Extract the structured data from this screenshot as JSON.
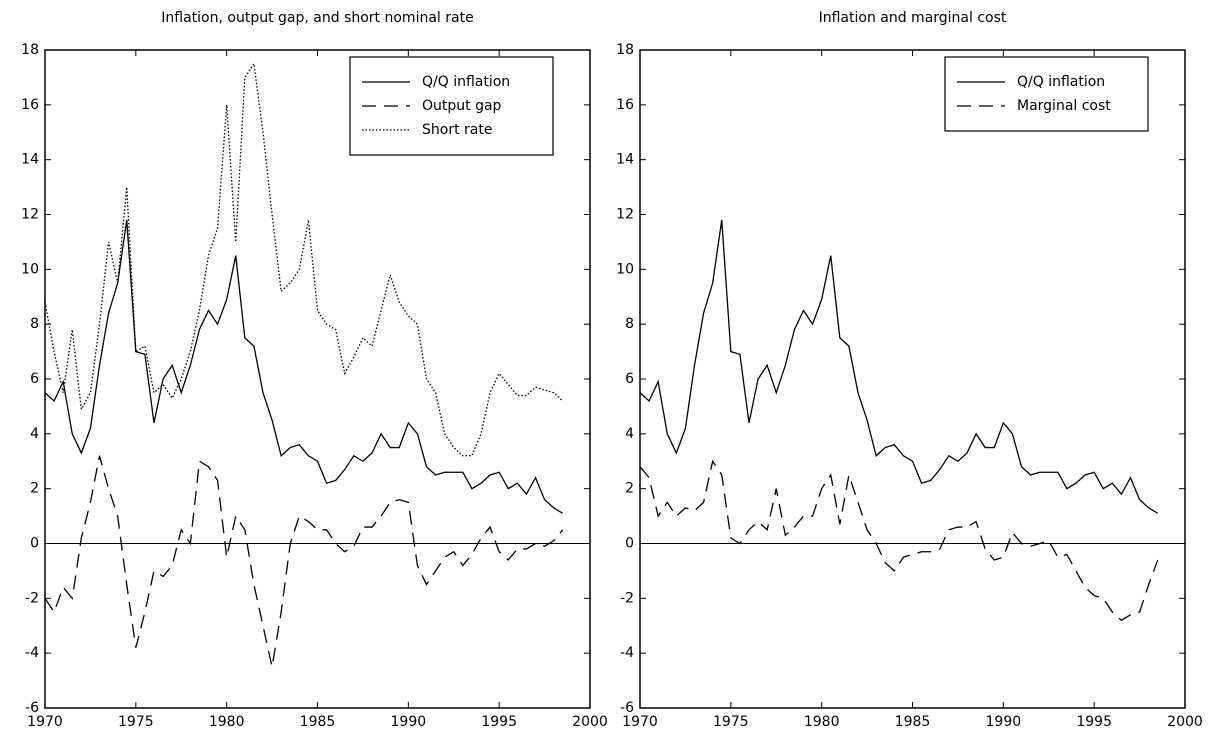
{
  "chart_data": [
    {
      "type": "line",
      "title": "Inflation, output gap, and short nominal rate",
      "x": [
        1970,
        1970.5,
        1971,
        1971.5,
        1972,
        1972.5,
        1973,
        1973.5,
        1974,
        1974.5,
        1975,
        1975.5,
        1976,
        1976.5,
        1977,
        1977.5,
        1978,
        1978.5,
        1979,
        1979.5,
        1980,
        1980.5,
        1981,
        1981.5,
        1982,
        1982.5,
        1983,
        1983.5,
        1984,
        1984.5,
        1985,
        1985.5,
        1986,
        1986.5,
        1987,
        1987.5,
        1988,
        1988.5,
        1989,
        1989.5,
        1990,
        1990.5,
        1991,
        1991.5,
        1992,
        1992.5,
        1993,
        1993.5,
        1994,
        1994.5,
        1995,
        1995.5,
        1996,
        1996.5,
        1997,
        1997.5,
        1998,
        1998.5
      ],
      "series": [
        {
          "name": "Q/Q inflation",
          "color": "#000000",
          "style": "solid",
          "values": [
            5.5,
            5.2,
            5.9,
            4.0,
            3.3,
            4.2,
            6.5,
            8.4,
            9.5,
            11.8,
            7.0,
            6.9,
            4.4,
            6.0,
            6.5,
            5.5,
            6.5,
            7.8,
            8.5,
            8.0,
            8.9,
            10.5,
            7.5,
            7.2,
            5.5,
            4.5,
            3.2,
            3.5,
            3.6,
            3.2,
            3.0,
            2.2,
            2.3,
            2.7,
            3.2,
            3.0,
            3.3,
            4.0,
            3.5,
            3.5,
            4.4,
            4.0,
            2.8,
            2.5,
            2.6,
            2.6,
            2.6,
            2.0,
            2.2,
            2.5,
            2.6,
            2.0,
            2.2,
            1.8,
            2.4,
            1.6,
            1.3,
            1.1
          ]
        },
        {
          "name": "Output gap",
          "color": "#000000",
          "style": "dashed",
          "values": [
            -2.0,
            -2.5,
            -1.6,
            -2.0,
            0.2,
            1.5,
            3.2,
            2.0,
            1.0,
            -1.5,
            -3.8,
            -2.5,
            -1.0,
            -1.2,
            -0.8,
            0.5,
            0.0,
            3.0,
            2.8,
            2.3,
            -0.5,
            1.0,
            0.5,
            -1.5,
            -3.0,
            -4.5,
            -2.5,
            0.0,
            1.0,
            0.8,
            0.5,
            0.5,
            0.0,
            -0.3,
            -0.1,
            0.6,
            0.6,
            1.0,
            1.5,
            1.6,
            1.5,
            -0.8,
            -1.5,
            -1.0,
            -0.5,
            -0.3,
            -0.8,
            -0.4,
            0.2,
            0.6,
            -0.3,
            -0.6,
            -0.2,
            -0.2,
            0.0,
            -0.1,
            0.1,
            0.5
          ]
        },
        {
          "name": "Short rate",
          "color": "#000000",
          "style": "dotted",
          "values": [
            8.8,
            7.0,
            5.5,
            7.8,
            4.9,
            5.5,
            8.0,
            11.0,
            9.5,
            13.0,
            7.0,
            7.2,
            5.5,
            5.8,
            5.3,
            6.0,
            7.0,
            8.5,
            10.5,
            11.5,
            16.0,
            11.0,
            17.0,
            17.5,
            15.0,
            12.0,
            9.2,
            9.5,
            10.0,
            11.8,
            8.5,
            8.0,
            7.8,
            6.2,
            6.8,
            7.5,
            7.2,
            8.5,
            9.8,
            8.8,
            8.3,
            8.0,
            6.0,
            5.5,
            4.0,
            3.5,
            3.2,
            3.2,
            4.0,
            5.5,
            6.2,
            5.8,
            5.4,
            5.4,
            5.7,
            5.6,
            5.5,
            5.2
          ]
        }
      ],
      "xlim": [
        1970,
        2000
      ],
      "xticks": [
        1970,
        1975,
        1980,
        1985,
        1990,
        1995,
        2000
      ],
      "ylim": [
        -6,
        18
      ],
      "yticks": [
        -6,
        -4,
        -2,
        0,
        2,
        4,
        6,
        8,
        10,
        12,
        14,
        16,
        18
      ],
      "legend": "upper right",
      "grid": false
    },
    {
      "type": "line",
      "title": "Inflation and marginal cost",
      "x": [
        1970,
        1970.5,
        1971,
        1971.5,
        1972,
        1972.5,
        1973,
        1973.5,
        1974,
        1974.5,
        1975,
        1975.5,
        1976,
        1976.5,
        1977,
        1977.5,
        1978,
        1978.5,
        1979,
        1979.5,
        1980,
        1980.5,
        1981,
        1981.5,
        1982,
        1982.5,
        1983,
        1983.5,
        1984,
        1984.5,
        1985,
        1985.5,
        1986,
        1986.5,
        1987,
        1987.5,
        1988,
        1988.5,
        1989,
        1989.5,
        1990,
        1990.5,
        1991,
        1991.5,
        1992,
        1992.5,
        1993,
        1993.5,
        1994,
        1994.5,
        1995,
        1995.5,
        1996,
        1996.5,
        1997,
        1997.5,
        1998,
        1998.5
      ],
      "series": [
        {
          "name": "Q/Q inflation",
          "color": "#000000",
          "style": "solid",
          "values": [
            5.5,
            5.2,
            5.9,
            4.0,
            3.3,
            4.2,
            6.5,
            8.4,
            9.5,
            11.8,
            7.0,
            6.9,
            4.4,
            6.0,
            6.5,
            5.5,
            6.5,
            7.8,
            8.5,
            8.0,
            8.9,
            10.5,
            7.5,
            7.2,
            5.5,
            4.5,
            3.2,
            3.5,
            3.6,
            3.2,
            3.0,
            2.2,
            2.3,
            2.7,
            3.2,
            3.0,
            3.3,
            4.0,
            3.5,
            3.5,
            4.4,
            4.0,
            2.8,
            2.5,
            2.6,
            2.6,
            2.6,
            2.0,
            2.2,
            2.5,
            2.6,
            2.0,
            2.2,
            1.8,
            2.4,
            1.6,
            1.3,
            1.1
          ]
        },
        {
          "name": "Marginal cost",
          "color": "#000000",
          "style": "dashed",
          "values": [
            2.8,
            2.4,
            1.0,
            1.5,
            1.0,
            1.3,
            1.2,
            1.5,
            3.0,
            2.5,
            0.2,
            0.0,
            0.5,
            0.8,
            0.5,
            2.0,
            0.3,
            0.6,
            1.0,
            1.0,
            2.0,
            2.5,
            0.7,
            2.5,
            1.5,
            0.5,
            0.0,
            -0.7,
            -1.0,
            -0.5,
            -0.4,
            -0.3,
            -0.3,
            -0.2,
            0.5,
            0.6,
            0.6,
            0.8,
            -0.2,
            -0.6,
            -0.5,
            0.4,
            0.0,
            -0.1,
            0.0,
            0.1,
            -0.5,
            -0.4,
            -1.0,
            -1.6,
            -1.9,
            -2.0,
            -2.5,
            -2.8,
            -2.6,
            -2.5,
            -1.5,
            -0.6
          ]
        }
      ],
      "xlim": [
        1970,
        2000
      ],
      "xticks": [
        1970,
        1975,
        1980,
        1985,
        1990,
        1995,
        2000
      ],
      "ylim": [
        -6,
        18
      ],
      "yticks": [
        -6,
        -4,
        -2,
        0,
        2,
        4,
        6,
        8,
        10,
        12,
        14,
        16,
        18
      ],
      "legend": "upper right",
      "grid": false
    }
  ]
}
